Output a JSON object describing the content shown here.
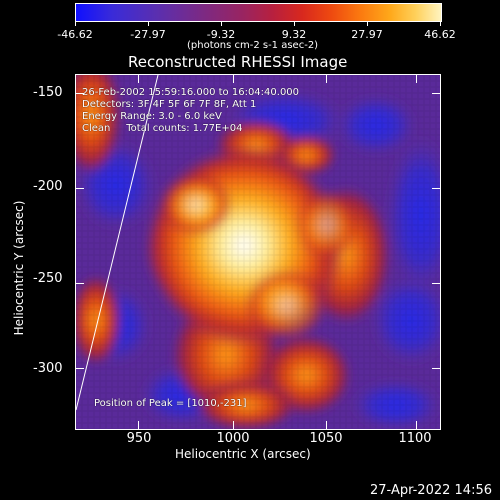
{
  "colorbar": {
    "ticks": [
      "-46.62",
      "-27.97",
      "-9.32",
      "9.32",
      "27.97",
      "46.62"
    ],
    "units": "(photons cm-2 s-1 asec-2)"
  },
  "plot": {
    "title": "Reconstructed RHESSI Image",
    "info_lines": [
      "26-Feb-2002 15:59:16.000 to 16:04:40.000",
      "Detectors: 3F 4F 5F 6F 7F 8F, Att 1",
      "Energy Range: 3.0 - 6.0 keV",
      "Clean     Total counts: 1.77E+04"
    ],
    "peak_label": "Position of Peak = [1010,-231]",
    "x_axis": {
      "title": "Heliocentric X (arcsec)",
      "ticks": [
        "950",
        "1000",
        "1050",
        "1100"
      ]
    },
    "y_axis": {
      "title": "Heliocentric Y (arcsec)",
      "ticks": [
        "-150",
        "-200",
        "-250",
        "-300"
      ]
    }
  },
  "footer": {
    "date": "27-Apr-2022 14:56"
  },
  "colors": {
    "background": "#000000",
    "foreground": "#ffffff",
    "scale_low": "#1010ff",
    "scale_mid": "#9a2460",
    "scale_high": "#fff4c0"
  }
}
